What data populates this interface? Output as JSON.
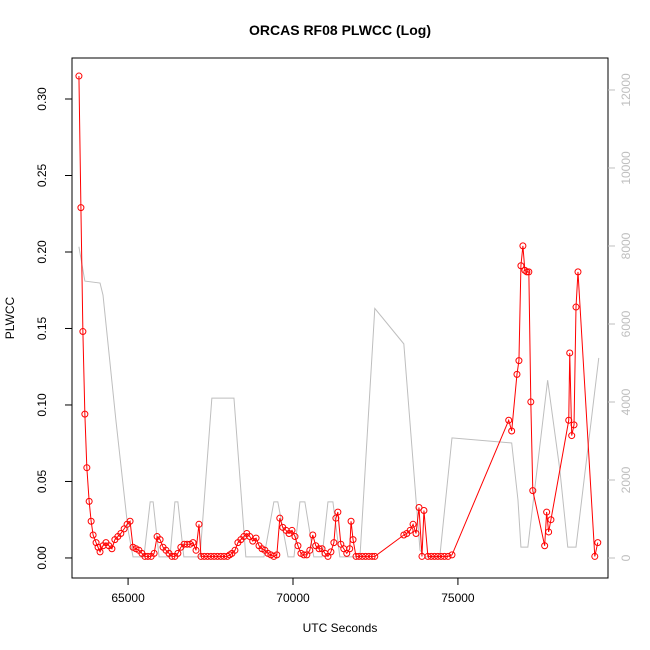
{
  "chart_data": {
    "type": "line",
    "title": "ORCAS RF08 PLWCC (Log)",
    "x_label": "UTC Seconds",
    "y_label": "PLWCC",
    "xlim": [
      63300,
      79550
    ],
    "xticks": [
      65000,
      70000,
      75000
    ],
    "ylim": [
      -0.0131,
      0.3268
    ],
    "yticks": [
      {
        "value": 0,
        "label": "0.00"
      },
      0.05,
      {
        "value": 0.1,
        "label": "0.10"
      },
      0.15,
      {
        "value": 0.2,
        "label": "0.20"
      },
      0.25,
      {
        "value": 0.3,
        "label": "0.30"
      }
    ],
    "y2lim": [
      -513,
      12820
    ],
    "y2ticks": [
      0,
      2000,
      4000,
      6000,
      8000,
      10000,
      12000
    ],
    "series": [
      {
        "name": "PLWCC",
        "color": "#ff0000",
        "markers": true,
        "x": [
          63510,
          63570,
          63630,
          63690,
          63750,
          63820,
          63880,
          63940,
          64030,
          64090,
          64150,
          64240,
          64330,
          64420,
          64510,
          64600,
          64690,
          64780,
          64880,
          64970,
          65060,
          65150,
          65240,
          65330,
          65420,
          65510,
          65600,
          65700,
          65790,
          65880,
          65970,
          66060,
          66150,
          66240,
          66330,
          66420,
          66510,
          66600,
          66700,
          66790,
          66880,
          66970,
          67060,
          67150,
          67210,
          67310,
          67410,
          67510,
          67610,
          67710,
          67810,
          67910,
          68010,
          68080,
          68150,
          68240,
          68330,
          68420,
          68510,
          68600,
          68690,
          68780,
          68880,
          68970,
          69060,
          69150,
          69240,
          69330,
          69420,
          69510,
          69600,
          69690,
          69790,
          69880,
          69970,
          70060,
          70150,
          70240,
          70330,
          70420,
          70510,
          70600,
          70690,
          70790,
          70880,
          70970,
          71060,
          71150,
          71240,
          71300,
          71360,
          71450,
          71540,
          71630,
          71720,
          71760,
          71820,
          71910,
          72000,
          72100,
          72200,
          72300,
          72400,
          72480,
          73360,
          73450,
          73550,
          73640,
          73730,
          73820,
          73910,
          73970,
          74090,
          74190,
          74290,
          74390,
          74490,
          74590,
          74700,
          74820,
          76540,
          76630,
          76790,
          76850,
          76910,
          76970,
          77030,
          77090,
          77150,
          77210,
          77270,
          77630,
          77690,
          77750,
          77820,
          78360,
          78390,
          78450,
          78520,
          78580,
          78640,
          79150,
          79240
        ],
        "values": [
          0.315,
          0.229,
          0.148,
          0.094,
          0.059,
          0.037,
          0.024,
          0.015,
          0.01,
          0.007,
          0.004,
          0.008,
          0.01,
          0.008,
          0.006,
          0.012,
          0.014,
          0.016,
          0.019,
          0.022,
          0.024,
          0.007,
          0.006,
          0.005,
          0.003,
          0.001,
          0.001,
          0.001,
          0.003,
          0.014,
          0.012,
          0.007,
          0.005,
          0.003,
          0.001,
          0.001,
          0.003,
          0.007,
          0.009,
          0.009,
          0.009,
          0.01,
          0.005,
          0.022,
          0.001,
          0.001,
          0.001,
          0.001,
          0.001,
          0.001,
          0.001,
          0.001,
          0.001,
          0.002,
          0.003,
          0.005,
          0.01,
          0.012,
          0.014,
          0.016,
          0.014,
          0.011,
          0.013,
          0.008,
          0.006,
          0.005,
          0.003,
          0.002,
          0.001,
          0.002,
          0.026,
          0.02,
          0.018,
          0.016,
          0.018,
          0.014,
          0.008,
          0.003,
          0.002,
          0.002,
          0.005,
          0.015,
          0.008,
          0.006,
          0.006,
          0.003,
          0.001,
          0.004,
          0.01,
          0.026,
          0.03,
          0.009,
          0.006,
          0.003,
          0.006,
          0.024,
          0.012,
          0.001,
          0.001,
          0.001,
          0.001,
          0.001,
          0.001,
          0.001,
          0.015,
          0.016,
          0.018,
          0.022,
          0.016,
          0.033,
          0.001,
          0.031,
          0.001,
          0.001,
          0.001,
          0.001,
          0.001,
          0.001,
          0.001,
          0.002,
          0.09,
          0.083,
          0.12,
          0.129,
          0.191,
          0.204,
          0.188,
          0.187,
          0.187,
          0.102,
          0.044,
          0.008,
          0.03,
          0.017,
          0.025,
          0.09,
          0.134,
          0.08,
          0.087,
          0.164,
          0.187,
          0.001,
          0.01
        ]
      },
      {
        "color": "#bebebe",
        "axis": "y2",
        "markers": false,
        "x": [
          63510,
          63690,
          64150,
          64240,
          64630,
          65000,
          65150,
          65480,
          65670,
          65760,
          65940,
          66270,
          66420,
          66510,
          66690,
          67180,
          67540,
          68210,
          68570,
          69120,
          69420,
          69540,
          69850,
          70030,
          70210,
          70360,
          70630,
          70880,
          71060,
          71210,
          71420,
          72030,
          72480,
          73360,
          73850,
          74030,
          74450,
          74820,
          76630,
          76820,
          76910,
          77120,
          77720,
          78090,
          78330,
          78580,
          79270
        ],
        "values": [
          7980,
          7100,
          7050,
          6740,
          3540,
          720,
          30,
          30,
          1440,
          1440,
          30,
          30,
          1440,
          1440,
          30,
          30,
          4100,
          4100,
          30,
          30,
          1440,
          1440,
          30,
          30,
          1440,
          1440,
          30,
          30,
          1440,
          1440,
          30,
          30,
          6400,
          5490,
          200,
          30,
          30,
          3080,
          2950,
          1490,
          280,
          280,
          4560,
          2260,
          280,
          280,
          5130
        ]
      }
    ]
  }
}
